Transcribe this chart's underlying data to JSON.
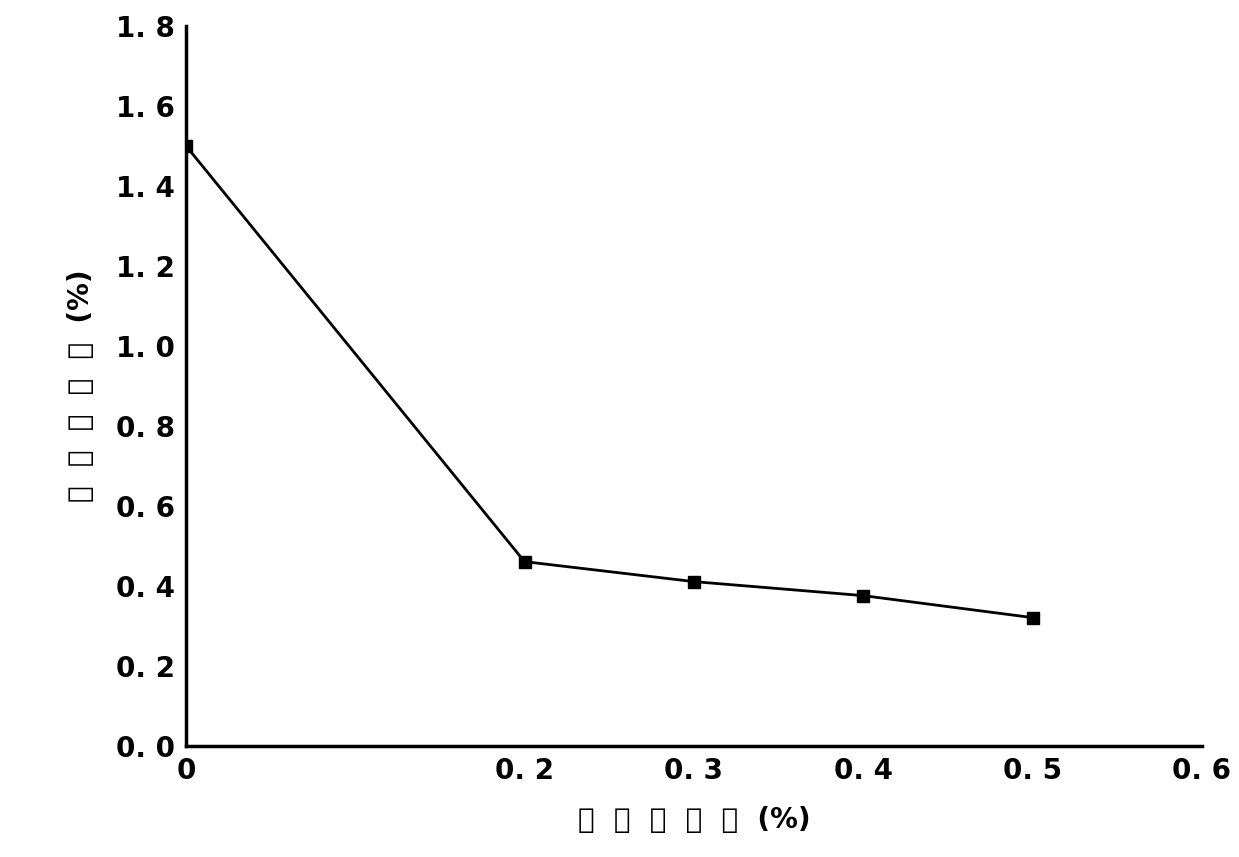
{
  "x": [
    0,
    0.2,
    0.3,
    0.4,
    0.5
  ],
  "y": [
    1.5,
    0.46,
    0.41,
    0.375,
    0.32
  ],
  "xlim": [
    0,
    0.6
  ],
  "ylim": [
    0,
    1.8
  ],
  "xticks": [
    0,
    0.2,
    0.3,
    0.4,
    0.5,
    0.6
  ],
  "yticks": [
    0.0,
    0.2,
    0.4,
    0.6,
    0.8,
    1.0,
    1.2,
    1.4,
    1.6,
    1.8
  ],
  "xlabel_chars": [
    "阵",
    "锈",
    "剂",
    "浓",
    "度",
    "(%)",
    ""
  ],
  "ylabel_chars": [
    "钒",
    "筋",
    "失",
    "重",
    "率",
    "(%)",
    ""
  ],
  "xlabel_spaced": "阵  锈  剂  浓  度  (%)",
  "ylabel_spaced": "钒  筋  失  重  率  (%)",
  "line_color": "#000000",
  "marker": "s",
  "markersize": 9,
  "linewidth": 2.0,
  "linestyle": "-",
  "background_color": "#ffffff",
  "tick_fontsize": 20,
  "label_fontsize": 20,
  "spine_linewidth": 2.5,
  "ytick_labels": [
    "0. 0",
    "0. 2",
    "0. 4",
    "0. 6",
    "0. 8",
    "1. 0",
    "1. 2",
    "1. 4",
    "1. 6",
    "1. 8"
  ],
  "xtick_labels": [
    "0",
    "0. 2",
    "0. 3",
    "0. 4",
    "0. 5",
    "0. 6"
  ]
}
